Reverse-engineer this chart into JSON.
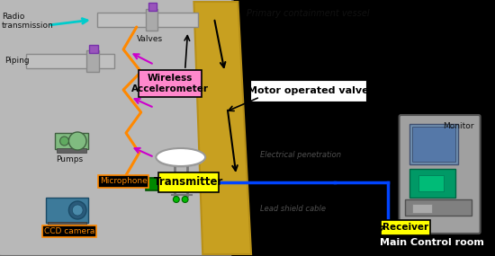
{
  "bg_color": "#000000",
  "vessel_fill": "#b8b8b8",
  "vessel_fill2": "#c8c8c8",
  "wall_fill": "#c8a020",
  "wall_fill2": "#b89018",
  "pipe_color": "#c0c0c0",
  "pipe_ec": "#888888",
  "pink_bg": "#FF88CC",
  "yellow_bg": "#FFFF00",
  "orange": "#FF8800",
  "magenta": "#CC00CC",
  "cyan": "#00CCCC",
  "green_eq": "#60C060",
  "blue_cable": "#0044FF",
  "room_fill": "#a0a0a0",
  "room_fill2": "#909090",
  "text_dark": "#111111",
  "text_white": "#ffffff",
  "text_orange": "#FF8800",
  "text_red": "#FF0000",
  "valve_purple": "#9955BB",
  "arrow_black": "#111111",
  "zigzag_orange": "#FF8800",
  "label_pcv": "Primary containment vessel",
  "label_radio": "Radio\ntransmission",
  "label_piping": "Piping",
  "label_valves": "Valves",
  "label_wireless": "Wireless\nAccelerometer",
  "label_motor": "Motor operated valve",
  "label_pumps": "Pumps",
  "label_micro": "Microphone",
  "label_transmitter": "Transmitter",
  "label_ccd": "CCD camera",
  "label_elec": "Electrical penetration",
  "label_lead": "Lead shield cable",
  "label_receiver": "Receiver",
  "label_monitor": "Monitor",
  "label_main": "Main Control room"
}
